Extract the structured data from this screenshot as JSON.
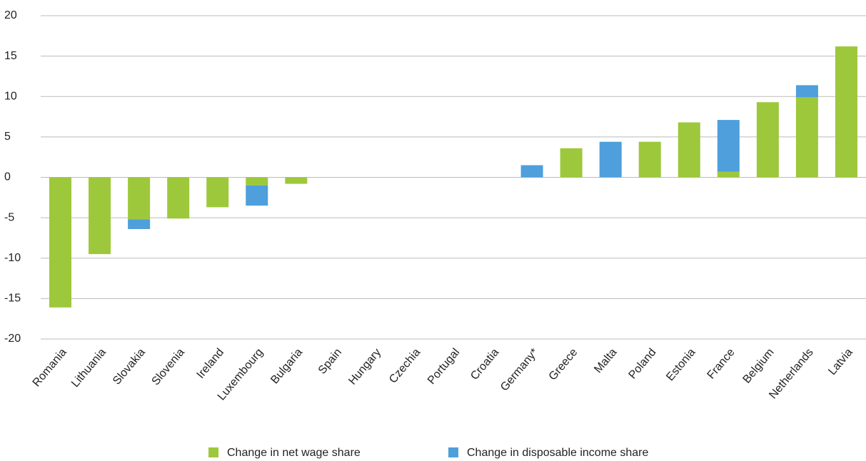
{
  "chart_data": {
    "type": "bar",
    "stacked": true,
    "categories": [
      "Romania",
      "Lithuania",
      "Slovakia",
      "Slovenia",
      "Ireland",
      "Luxembourg",
      "Bulgaria",
      "Spain",
      "Hungary",
      "Czechia",
      "Portugal",
      "Croatia",
      "Germany*",
      "Greece",
      "Malta",
      "Poland",
      "Estonia",
      "France",
      "Belgium",
      "Netherlands",
      "Latvia"
    ],
    "series": [
      {
        "name": "Change in net wage share",
        "color": "#9dc83b",
        "values": [
          -16.1,
          -9.5,
          -5.2,
          -5.1,
          -3.7,
          -1,
          -0.8,
          0,
          0,
          0,
          0,
          0,
          0,
          3.6,
          0,
          4.4,
          6.8,
          0.7,
          9.3,
          9.9,
          16.2
        ]
      },
      {
        "name": "Change in disposable income share",
        "color": "#4e9fdc",
        "values": [
          0,
          0,
          -1.2,
          0,
          0,
          -2.5,
          0,
          0,
          0,
          0,
          0,
          0,
          1.5,
          0,
          4.4,
          0,
          0,
          6.4,
          0,
          1.5,
          0
        ]
      }
    ],
    "ylim": [
      -20,
      20
    ],
    "yticks": [
      -20,
      -15,
      -10,
      -5,
      0,
      5,
      10,
      15,
      20
    ],
    "grid": true,
    "legend": "bottom"
  }
}
